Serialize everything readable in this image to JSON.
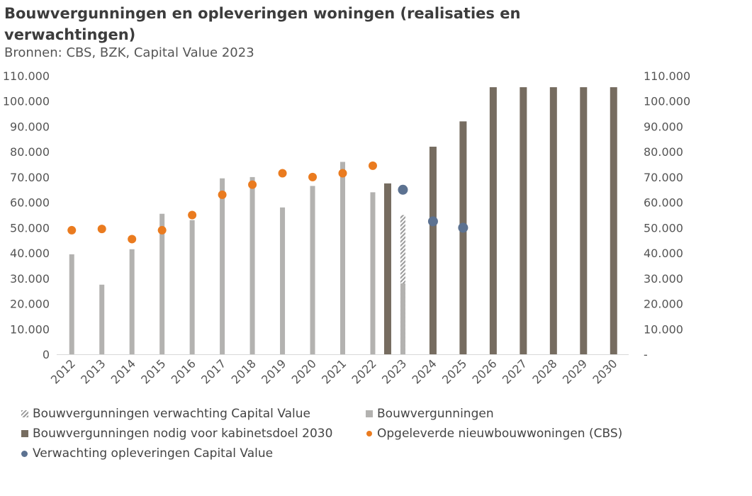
{
  "header": {
    "title": "Bouwvergunningen en opleveringen woningen (realisaties en verwachtingen)",
    "subtitle": "Bronnen: CBS, BZK, Capital Value 2023"
  },
  "colors": {
    "permits": "#b3b2b0",
    "permits_expected_cv": "#9a9a9a",
    "permits_needed": "#766c60",
    "completions_cbs": "#ea7b1f",
    "completions_expected_cv": "#5c7291",
    "axis_text": "#555555",
    "axis_line": "#d9d9d9"
  },
  "chart_data": {
    "type": "bar",
    "title": "Bouwvergunningen en opleveringen woningen (realisaties en verwachtingen)",
    "subtitle": "Bronnen: CBS, BZK, Capital Value 2023",
    "categories": [
      "2012",
      "2013",
      "2014",
      "2015",
      "2016",
      "2017",
      "2018",
      "2019",
      "2020",
      "2021",
      "2022",
      "2023",
      "2024",
      "2025",
      "2026",
      "2027",
      "2028",
      "2029",
      "2030"
    ],
    "ylim": [
      0,
      110000
    ],
    "y_ticks_left": [
      "0",
      "10.000",
      "20.000",
      "30.000",
      "40.000",
      "50.000",
      "60.000",
      "70.000",
      "80.000",
      "90.000",
      "100.000",
      "110.000"
    ],
    "y_ticks_right": [
      "-",
      "10.000",
      "20.000",
      "30.000",
      "40.000",
      "50.000",
      "60.000",
      "70.000",
      "80.000",
      "90.000",
      "100.000",
      "110.000"
    ],
    "grid": false,
    "legend_position": "bottom",
    "series": [
      {
        "name": "Bouwvergunningen verwachting Capital Value",
        "kind": "bar-hatched",
        "values": [
          null,
          null,
          null,
          null,
          null,
          null,
          null,
          null,
          null,
          null,
          null,
          55000,
          null,
          null,
          null,
          null,
          null,
          null,
          null
        ]
      },
      {
        "name": "Bouwvergunningen",
        "kind": "bar",
        "values": [
          39500,
          27500,
          41500,
          55500,
          53000,
          69500,
          70000,
          58000,
          66500,
          76000,
          64000,
          28000,
          null,
          null,
          null,
          null,
          null,
          null,
          null
        ]
      },
      {
        "name": "Bouwvergunningen nodig voor kabinetsdoel 2030",
        "kind": "bar",
        "values": [
          null,
          null,
          null,
          null,
          null,
          null,
          null,
          null,
          null,
          null,
          67500,
          null,
          82000,
          92000,
          105500,
          105500,
          105500,
          105500,
          105500
        ]
      },
      {
        "name": "Opgeleverde nieuwbouwwoningen (CBS)",
        "kind": "dot",
        "values": [
          49000,
          49500,
          45500,
          49000,
          55000,
          63000,
          67000,
          71500,
          70000,
          71500,
          74500,
          null,
          null,
          null,
          null,
          null,
          null,
          null,
          null
        ]
      },
      {
        "name": "Verwachting opleveringen Capital Value",
        "kind": "dot",
        "values": [
          null,
          null,
          null,
          null,
          null,
          null,
          null,
          null,
          null,
          null,
          null,
          65000,
          52500,
          50000,
          null,
          null,
          null,
          null,
          null
        ]
      }
    ]
  }
}
